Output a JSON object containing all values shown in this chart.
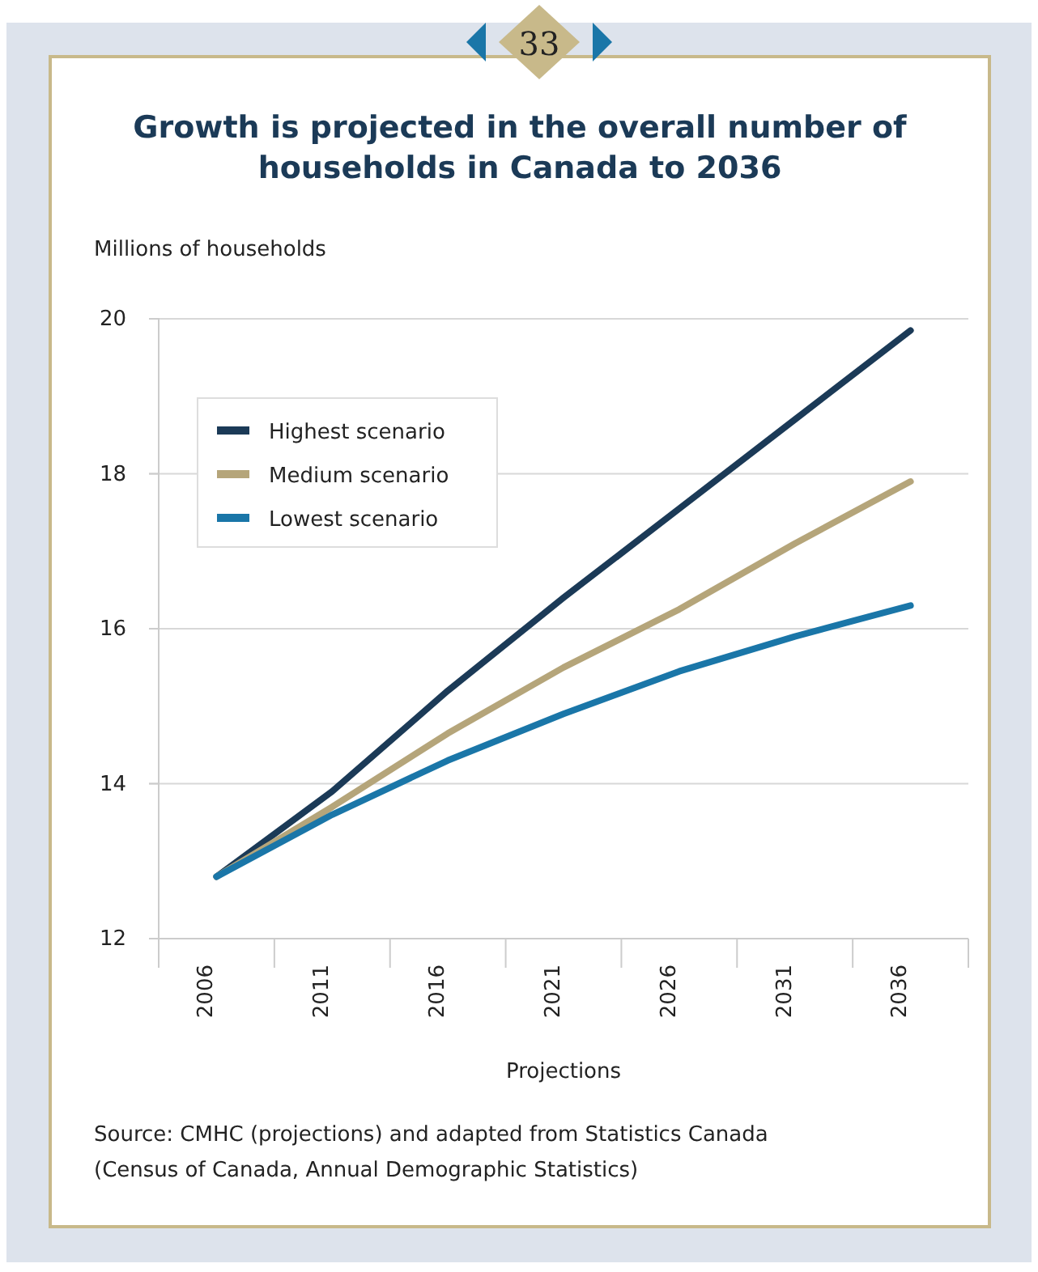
{
  "chart_data": {
    "type": "line",
    "title": "Growth is projected in the overall number of households in Canada to 2036",
    "ylabel": "Millions of households",
    "xlabel": "Projections",
    "categories": [
      "2006",
      "2011",
      "2016",
      "2021",
      "2026",
      "2031",
      "2036"
    ],
    "series": [
      {
        "name": "Highest scenario",
        "color": "#1b3a57",
        "values": [
          12.8,
          13.9,
          15.2,
          16.4,
          17.55,
          18.7,
          19.85
        ]
      },
      {
        "name": "Medium scenario",
        "color": "#b5a57a",
        "values": [
          12.8,
          13.7,
          14.65,
          15.5,
          16.25,
          17.1,
          17.9
        ]
      },
      {
        "name": "Lowest scenario",
        "color": "#1a76a8",
        "values": [
          12.8,
          13.6,
          14.3,
          14.9,
          15.45,
          15.9,
          16.3
        ]
      }
    ],
    "ylim": [
      12,
      20
    ],
    "yticks": [
      12,
      14,
      16,
      18,
      20
    ],
    "grid": "y",
    "legend": "top left",
    "marker": "none",
    "line_style": "solid",
    "annotations": [
      "33",
      "Source: CMHC (projections) and adapted from Statistics Canada (Census of Canada, Annual Demographic Statistics)"
    ]
  }
}
